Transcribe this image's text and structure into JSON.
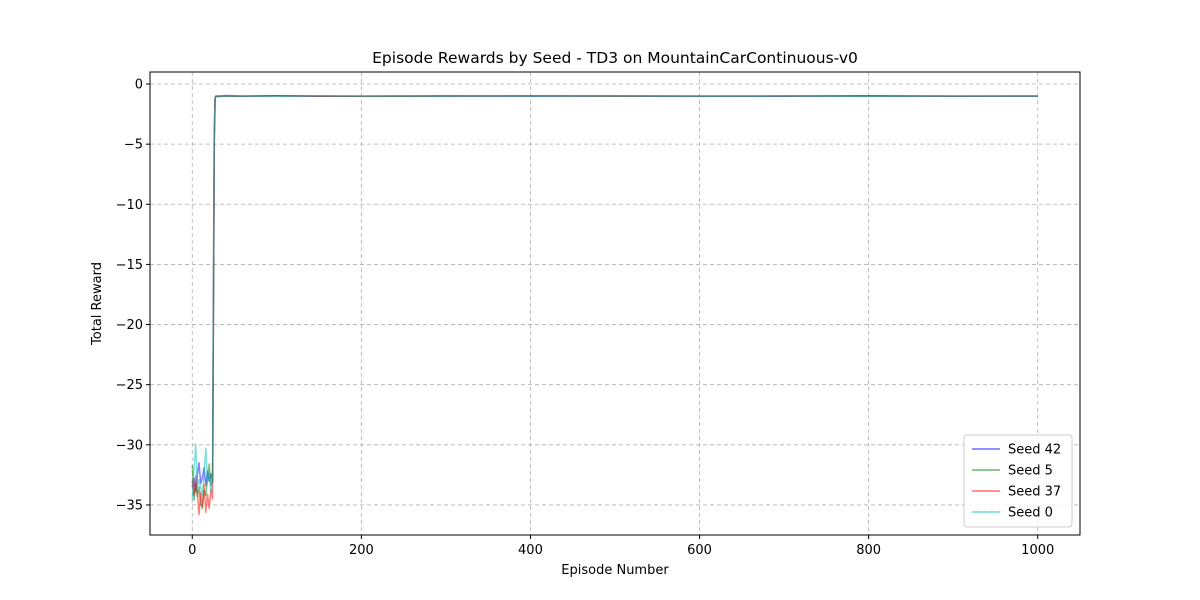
{
  "chart_data": {
    "type": "line",
    "title": "Episode Rewards by Seed - TD3 on MountainCarContinuous-v0",
    "xlabel": "Episode Number",
    "ylabel": "Total Reward",
    "xlim": [
      -50,
      1050
    ],
    "ylim": [
      -37.5,
      1.0
    ],
    "xticks": [
      0,
      200,
      400,
      600,
      800,
      1000
    ],
    "yticks": [
      0,
      -5,
      -10,
      -15,
      -20,
      -25,
      -30,
      -35
    ],
    "xtick_labels": [
      "0",
      "200",
      "400",
      "600",
      "800",
      "1000"
    ],
    "ytick_labels": [
      "0",
      "−5",
      "−10",
      "−15",
      "−20",
      "−25",
      "−30",
      "−35"
    ],
    "grid": true,
    "legend_position": "lower right",
    "series": [
      {
        "name": "Seed 42",
        "color": "#0000ff",
        "opacity": 0.5,
        "x": [
          0,
          2,
          4,
          6,
          8,
          10,
          12,
          14,
          16,
          18,
          20,
          22,
          24,
          25,
          26,
          27,
          28,
          30,
          40,
          60,
          100,
          150,
          200,
          300,
          400,
          500,
          600,
          700,
          800,
          900,
          1000
        ],
        "y": [
          -33.5,
          -32.8,
          -33.9,
          -32.5,
          -31.5,
          -33.2,
          -32.7,
          -31.9,
          -33.4,
          -32.2,
          -33.0,
          -32.4,
          -33.1,
          -20.0,
          -5.0,
          -1.2,
          -1.0,
          -1.0,
          -0.95,
          -1.0,
          -0.98,
          -1.02,
          -1.0,
          -0.97,
          -1.01,
          -0.99,
          -1.0,
          -1.02,
          -0.98,
          -1.0,
          -1.0
        ]
      },
      {
        "name": "Seed 5",
        "color": "#008000",
        "opacity": 0.5,
        "x": [
          0,
          2,
          4,
          6,
          8,
          10,
          12,
          14,
          16,
          18,
          20,
          22,
          24,
          25,
          26,
          27,
          28,
          30,
          40,
          60,
          100,
          150,
          200,
          300,
          400,
          500,
          600,
          700,
          800,
          900,
          1000
        ],
        "y": [
          -31.7,
          -34.6,
          -33.2,
          -34.3,
          -33.5,
          -34.9,
          -35.3,
          -33.8,
          -34.2,
          -32.8,
          -31.6,
          -33.4,
          -32.9,
          -18.0,
          -4.0,
          -1.3,
          -1.0,
          -1.05,
          -1.0,
          -1.02,
          -0.99,
          -1.0,
          -1.03,
          -1.0,
          -0.98,
          -1.01,
          -1.0,
          -0.99,
          -1.02,
          -1.0,
          -1.0
        ]
      },
      {
        "name": "Seed 37",
        "color": "#ff0000",
        "opacity": 0.5,
        "x": [
          0,
          2,
          4,
          6,
          8,
          10,
          12,
          14,
          16,
          18,
          20,
          22,
          24,
          25,
          26,
          27,
          28,
          30,
          40,
          60,
          100,
          150,
          200,
          300,
          400,
          500,
          600,
          700,
          800,
          900,
          1000
        ],
        "y": [
          -33.0,
          -34.2,
          -32.6,
          -33.8,
          -35.8,
          -34.0,
          -35.1,
          -33.3,
          -35.6,
          -34.1,
          -35.3,
          -33.7,
          -34.5,
          -19.0,
          -4.5,
          -1.1,
          -1.0,
          -1.0,
          -1.02,
          -1.0,
          -0.97,
          -1.0,
          -1.01,
          -1.03,
          -0.99,
          -1.0,
          -1.02,
          -1.0,
          -0.98,
          -1.01,
          -1.0
        ]
      },
      {
        "name": "Seed 0",
        "color": "#00bfbf",
        "opacity": 0.5,
        "x": [
          0,
          2,
          4,
          6,
          8,
          10,
          12,
          14,
          16,
          18,
          20,
          22,
          24,
          25,
          26,
          27,
          28,
          30,
          40,
          60,
          100,
          150,
          200,
          300,
          400,
          500,
          600,
          700,
          800,
          900,
          1000
        ],
        "y": [
          -34.6,
          -32.0,
          -30.0,
          -33.5,
          -32.9,
          -33.6,
          -34.2,
          -32.3,
          -30.3,
          -33.1,
          -32.4,
          -34.0,
          -32.6,
          -17.0,
          -3.5,
          -1.2,
          -1.05,
          -1.0,
          -1.03,
          -1.0,
          -1.01,
          -0.98,
          -1.0,
          -1.02,
          -1.0,
          -0.99,
          -1.04,
          -1.0,
          -1.01,
          -1.0,
          -1.0
        ]
      }
    ]
  }
}
